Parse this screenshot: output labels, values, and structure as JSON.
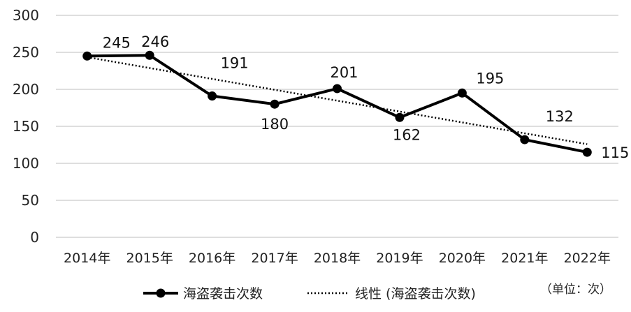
{
  "chart_data": {
    "type": "line",
    "categories": [
      "2014年",
      "2015年",
      "2016年",
      "2017年",
      "2018年",
      "2019年",
      "2020年",
      "2021年",
      "2022年"
    ],
    "series": [
      {
        "name": "海盗袭击次数",
        "values": [
          245,
          246,
          191,
          180,
          201,
          162,
          195,
          132,
          115
        ],
        "color": "#000000",
        "style": "solid-with-markers"
      },
      {
        "name": "线性 (海盗袭击次数)",
        "values": [
          243.5,
          228.8,
          214.1,
          199.4,
          184.7,
          170.0,
          155.3,
          140.6,
          125.9
        ],
        "color": "#000000",
        "style": "dotted"
      }
    ],
    "data_labels": [
      "245",
      "246",
      "191",
      "180",
      "201",
      "162",
      "195",
      "132",
      "115"
    ],
    "ylim": [
      0,
      300
    ],
    "yticks": [
      "0",
      "50",
      "100",
      "150",
      "200",
      "250",
      "300"
    ],
    "grid": true,
    "legend_position": "bottom",
    "unit_note": "（单位：次）"
  }
}
